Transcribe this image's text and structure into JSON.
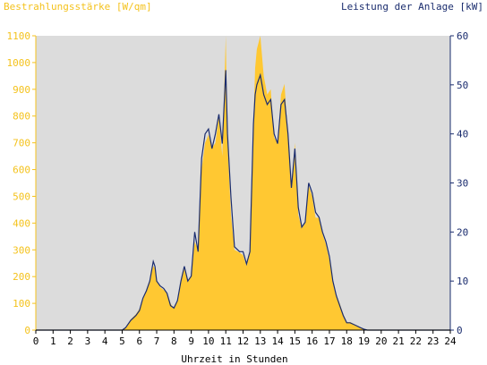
{
  "chart_data": {
    "type": "area",
    "left_axis_label": "Bestrahlungsstärke [W/qm]",
    "right_axis_label": "Leistung der Anlage [kW]",
    "xlabel": "Uhrzeit in Stunden",
    "xlim": [
      0,
      24
    ],
    "ylim_left": [
      0,
      1100
    ],
    "ylim_right": [
      0,
      60
    ],
    "x_ticks": [
      "0",
      "1",
      "2",
      "3",
      "4",
      "5",
      "6",
      "7",
      "8",
      "9",
      "10",
      "11",
      "12",
      "13",
      "14",
      "15",
      "16",
      "17",
      "18",
      "19",
      "20",
      "21",
      "22",
      "23",
      "24"
    ],
    "y_left_ticks": [
      "0",
      "100",
      "200",
      "300",
      "400",
      "500",
      "600",
      "700",
      "800",
      "900",
      "1000",
      "1100"
    ],
    "y_right_ticks": [
      "0",
      "10",
      "20",
      "30",
      "40",
      "50",
      "60"
    ],
    "colors": {
      "irradiance": "#ffc832",
      "power": "#1a2c6e",
      "plot_bg": "#dcdcdc",
      "left_axis": "#f4c21c",
      "right_axis": "#1a2c6e"
    },
    "series": [
      {
        "role": "irradiance",
        "unit": "W/qm",
        "points": [
          [
            0,
            0
          ],
          [
            5.0,
            0
          ],
          [
            5.2,
            10
          ],
          [
            5.5,
            40
          ],
          [
            5.8,
            60
          ],
          [
            6.0,
            80
          ],
          [
            6.2,
            120
          ],
          [
            6.4,
            150
          ],
          [
            6.6,
            190
          ],
          [
            6.8,
            240
          ],
          [
            6.9,
            230
          ],
          [
            7.0,
            190
          ],
          [
            7.2,
            160
          ],
          [
            7.4,
            150
          ],
          [
            7.6,
            140
          ],
          [
            7.8,
            100
          ],
          [
            8.0,
            80
          ],
          [
            8.2,
            110
          ],
          [
            8.4,
            180
          ],
          [
            8.6,
            230
          ],
          [
            8.8,
            180
          ],
          [
            9.0,
            200
          ],
          [
            9.2,
            330
          ],
          [
            9.4,
            300
          ],
          [
            9.6,
            600
          ],
          [
            9.8,
            700
          ],
          [
            10.0,
            730
          ],
          [
            10.2,
            680
          ],
          [
            10.4,
            700
          ],
          [
            10.6,
            800
          ],
          [
            10.8,
            650
          ],
          [
            11.0,
            1100
          ],
          [
            11.1,
            700
          ],
          [
            11.3,
            430
          ],
          [
            11.5,
            300
          ],
          [
            11.8,
            290
          ],
          [
            12.0,
            280
          ],
          [
            12.2,
            240
          ],
          [
            12.4,
            300
          ],
          [
            12.6,
            780
          ],
          [
            12.7,
            980
          ],
          [
            12.8,
            1050
          ],
          [
            13.0,
            1100
          ],
          [
            13.2,
            950
          ],
          [
            13.4,
            880
          ],
          [
            13.6,
            900
          ],
          [
            13.8,
            720
          ],
          [
            14.0,
            700
          ],
          [
            14.2,
            880
          ],
          [
            14.4,
            920
          ],
          [
            14.6,
            720
          ],
          [
            14.8,
            530
          ],
          [
            15.0,
            700
          ],
          [
            15.2,
            430
          ],
          [
            15.4,
            380
          ],
          [
            15.6,
            400
          ],
          [
            15.8,
            540
          ],
          [
            16.0,
            500
          ],
          [
            16.2,
            420
          ],
          [
            16.4,
            420
          ],
          [
            16.6,
            360
          ],
          [
            16.8,
            320
          ],
          [
            17.0,
            260
          ],
          [
            17.2,
            180
          ],
          [
            17.4,
            130
          ],
          [
            17.6,
            100
          ],
          [
            17.8,
            60
          ],
          [
            18.0,
            30
          ],
          [
            18.2,
            30
          ],
          [
            18.5,
            20
          ],
          [
            18.8,
            10
          ],
          [
            19.0,
            3
          ],
          [
            19.2,
            0
          ],
          [
            24,
            0
          ]
        ]
      },
      {
        "role": "power",
        "unit": "kW",
        "points": [
          [
            0,
            0
          ],
          [
            5.0,
            0
          ],
          [
            5.2,
            0.5
          ],
          [
            5.5,
            2
          ],
          [
            5.8,
            3
          ],
          [
            6.0,
            4
          ],
          [
            6.2,
            6.5
          ],
          [
            6.4,
            8
          ],
          [
            6.6,
            10
          ],
          [
            6.8,
            14
          ],
          [
            6.9,
            13
          ],
          [
            7.0,
            10
          ],
          [
            7.2,
            9
          ],
          [
            7.4,
            8.5
          ],
          [
            7.6,
            7.5
          ],
          [
            7.8,
            5
          ],
          [
            8.0,
            4.5
          ],
          [
            8.2,
            6
          ],
          [
            8.4,
            10
          ],
          [
            8.6,
            13
          ],
          [
            8.8,
            10
          ],
          [
            9.0,
            11
          ],
          [
            9.2,
            20
          ],
          [
            9.4,
            16
          ],
          [
            9.6,
            35
          ],
          [
            9.8,
            40
          ],
          [
            10.0,
            41
          ],
          [
            10.2,
            37
          ],
          [
            10.4,
            40
          ],
          [
            10.6,
            44
          ],
          [
            10.8,
            38
          ],
          [
            11.0,
            53
          ],
          [
            11.1,
            40
          ],
          [
            11.3,
            27
          ],
          [
            11.5,
            17
          ],
          [
            11.8,
            16
          ],
          [
            12.0,
            16
          ],
          [
            12.2,
            13.5
          ],
          [
            12.4,
            16
          ],
          [
            12.6,
            42
          ],
          [
            12.7,
            48
          ],
          [
            12.8,
            50
          ],
          [
            13.0,
            52
          ],
          [
            13.2,
            48
          ],
          [
            13.4,
            46
          ],
          [
            13.6,
            47
          ],
          [
            13.8,
            40
          ],
          [
            14.0,
            38
          ],
          [
            14.2,
            46
          ],
          [
            14.4,
            47
          ],
          [
            14.6,
            40
          ],
          [
            14.8,
            29
          ],
          [
            15.0,
            37
          ],
          [
            15.2,
            25
          ],
          [
            15.4,
            21
          ],
          [
            15.6,
            22
          ],
          [
            15.8,
            30
          ],
          [
            16.0,
            28
          ],
          [
            16.2,
            24
          ],
          [
            16.4,
            23
          ],
          [
            16.6,
            20
          ],
          [
            16.8,
            18
          ],
          [
            17.0,
            15
          ],
          [
            17.2,
            10
          ],
          [
            17.4,
            7
          ],
          [
            17.6,
            5
          ],
          [
            17.8,
            3
          ],
          [
            18.0,
            1.5
          ],
          [
            18.2,
            1.5
          ],
          [
            18.5,
            1
          ],
          [
            18.8,
            0.5
          ],
          [
            19.0,
            0.2
          ],
          [
            19.2,
            0
          ],
          [
            24,
            0
          ]
        ]
      }
    ]
  }
}
